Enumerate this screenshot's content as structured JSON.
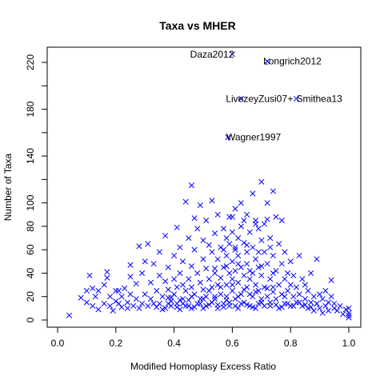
{
  "chart_data": {
    "type": "scatter",
    "title": "Taxa vs MHER",
    "xlabel": "Modified Homoplasy Excess Ratio",
    "ylabel": "Number of Taxa",
    "xlim": [
      0,
      1
    ],
    "ylim": [
      -5,
      235
    ],
    "x_ticks": [
      0.0,
      0.2,
      0.4,
      0.6,
      0.8,
      1.0
    ],
    "x_tick_labels": [
      "0.0",
      "0.2",
      "0.4",
      "0.6",
      "0.8",
      "1.0"
    ],
    "y_ticks": [
      0,
      20,
      40,
      60,
      80,
      100,
      120,
      140,
      160,
      180,
      200,
      220
    ],
    "y_tick_labels": [
      "0",
      "20",
      "40",
      "60",
      "80",
      "100",
      "",
      "140",
      "",
      "180",
      "",
      "220"
    ],
    "grid": false,
    "marker": "x",
    "marker_color": "#0000ff",
    "highlighted_points": [
      {
        "label": "Daza2012",
        "x": 0.6,
        "y": 227
      },
      {
        "label": "Longrich2012",
        "x": 0.72,
        "y": 221
      },
      {
        "label": "LivezeyZusi07",
        "x": 0.63,
        "y": 189
      },
      {
        "label": "Smithea13",
        "x": 0.82,
        "y": 189
      },
      {
        "label": "Wagner1997",
        "x": 0.585,
        "y": 156
      }
    ],
    "points": [
      [
        0.04,
        4
      ],
      [
        0.08,
        19
      ],
      [
        0.1,
        25
      ],
      [
        0.1,
        15
      ],
      [
        0.11,
        38
      ],
      [
        0.12,
        12
      ],
      [
        0.12,
        27
      ],
      [
        0.13,
        20
      ],
      [
        0.14,
        9
      ],
      [
        0.14,
        25
      ],
      [
        0.16,
        14
      ],
      [
        0.16,
        30
      ],
      [
        0.17,
        41
      ],
      [
        0.17,
        36
      ],
      [
        0.18,
        12
      ],
      [
        0.18,
        20
      ],
      [
        0.19,
        8
      ],
      [
        0.2,
        25
      ],
      [
        0.2,
        16
      ],
      [
        0.21,
        14
      ],
      [
        0.21,
        25
      ],
      [
        0.22,
        20
      ],
      [
        0.22,
        11
      ],
      [
        0.23,
        27
      ],
      [
        0.24,
        10
      ],
      [
        0.24,
        15
      ],
      [
        0.25,
        37
      ],
      [
        0.25,
        47
      ],
      [
        0.25,
        22
      ],
      [
        0.26,
        12
      ],
      [
        0.27,
        18
      ],
      [
        0.27,
        31
      ],
      [
        0.28,
        63
      ],
      [
        0.28,
        10
      ],
      [
        0.29,
        14
      ],
      [
        0.29,
        40
      ],
      [
        0.3,
        50
      ],
      [
        0.3,
        22
      ],
      [
        0.31,
        12
      ],
      [
        0.31,
        65
      ],
      [
        0.32,
        18
      ],
      [
        0.32,
        32
      ],
      [
        0.33,
        14
      ],
      [
        0.33,
        48
      ],
      [
        0.34,
        11
      ],
      [
        0.34,
        25
      ],
      [
        0.35,
        58
      ],
      [
        0.35,
        38
      ],
      [
        0.36,
        9
      ],
      [
        0.36,
        20
      ],
      [
        0.37,
        33
      ],
      [
        0.37,
        72
      ],
      [
        0.38,
        14
      ],
      [
        0.38,
        26
      ],
      [
        0.38,
        45
      ],
      [
        0.39,
        19
      ],
      [
        0.39,
        12
      ],
      [
        0.4,
        55
      ],
      [
        0.4,
        35
      ],
      [
        0.4,
        22
      ],
      [
        0.41,
        28
      ],
      [
        0.41,
        14
      ],
      [
        0.41,
        79
      ],
      [
        0.42,
        9
      ],
      [
        0.42,
        40
      ],
      [
        0.42,
        62
      ],
      [
        0.43,
        18
      ],
      [
        0.43,
        30
      ],
      [
        0.43,
        50
      ],
      [
        0.44,
        12
      ],
      [
        0.44,
        25
      ],
      [
        0.44,
        101
      ],
      [
        0.45,
        35
      ],
      [
        0.45,
        70
      ],
      [
        0.45,
        17
      ],
      [
        0.46,
        10
      ],
      [
        0.46,
        46
      ],
      [
        0.46,
        115
      ],
      [
        0.46,
        28
      ],
      [
        0.47,
        60
      ],
      [
        0.47,
        22
      ],
      [
        0.47,
        87
      ],
      [
        0.48,
        14
      ],
      [
        0.48,
        40
      ],
      [
        0.48,
        78
      ],
      [
        0.49,
        32
      ],
      [
        0.49,
        98
      ],
      [
        0.49,
        18
      ],
      [
        0.5,
        52
      ],
      [
        0.5,
        26
      ],
      [
        0.5,
        68
      ],
      [
        0.5,
        10
      ],
      [
        0.51,
        44
      ],
      [
        0.51,
        85
      ],
      [
        0.51,
        20
      ],
      [
        0.52,
        35
      ],
      [
        0.52,
        64
      ],
      [
        0.52,
        13
      ],
      [
        0.53,
        58
      ],
      [
        0.53,
        28
      ],
      [
        0.53,
        102
      ],
      [
        0.54,
        40
      ],
      [
        0.54,
        74
      ],
      [
        0.54,
        18
      ],
      [
        0.55,
        52
      ],
      [
        0.55,
        30
      ],
      [
        0.55,
        90
      ],
      [
        0.55,
        10
      ],
      [
        0.56,
        62
      ],
      [
        0.56,
        36
      ],
      [
        0.56,
        22
      ],
      [
        0.57,
        78
      ],
      [
        0.57,
        45
      ],
      [
        0.57,
        14
      ],
      [
        0.58,
        70
      ],
      [
        0.58,
        55
      ],
      [
        0.58,
        30
      ],
      [
        0.58,
        20
      ],
      [
        0.59,
        88
      ],
      [
        0.59,
        40
      ],
      [
        0.59,
        65
      ],
      [
        0.59,
        12
      ],
      [
        0.6,
        50
      ],
      [
        0.6,
        75
      ],
      [
        0.6,
        25
      ],
      [
        0.6,
        35
      ],
      [
        0.61,
        95
      ],
      [
        0.61,
        60
      ],
      [
        0.61,
        42
      ],
      [
        0.61,
        18
      ],
      [
        0.62,
        70
      ],
      [
        0.62,
        32
      ],
      [
        0.62,
        55
      ],
      [
        0.62,
        10
      ],
      [
        0.63,
        100
      ],
      [
        0.63,
        80
      ],
      [
        0.63,
        45
      ],
      [
        0.63,
        22
      ],
      [
        0.64,
        66
      ],
      [
        0.64,
        38
      ],
      [
        0.64,
        15
      ],
      [
        0.65,
        90
      ],
      [
        0.65,
        58
      ],
      [
        0.65,
        28
      ],
      [
        0.65,
        48
      ],
      [
        0.66,
        75
      ],
      [
        0.66,
        35
      ],
      [
        0.66,
        12
      ],
      [
        0.67,
        108
      ],
      [
        0.67,
        62
      ],
      [
        0.67,
        40
      ],
      [
        0.67,
        20
      ],
      [
        0.68,
        85
      ],
      [
        0.68,
        52
      ],
      [
        0.68,
        30
      ],
      [
        0.68,
        10
      ],
      [
        0.69,
        78
      ],
      [
        0.69,
        45
      ],
      [
        0.69,
        25
      ],
      [
        0.7,
        68
      ],
      [
        0.7,
        118
      ],
      [
        0.7,
        38
      ],
      [
        0.7,
        15
      ],
      [
        0.71,
        58
      ],
      [
        0.71,
        82
      ],
      [
        0.71,
        28
      ],
      [
        0.72,
        48
      ],
      [
        0.72,
        100
      ],
      [
        0.72,
        20
      ],
      [
        0.73,
        70
      ],
      [
        0.73,
        35
      ],
      [
        0.73,
        12
      ],
      [
        0.74,
        110
      ],
      [
        0.74,
        55
      ],
      [
        0.74,
        28
      ],
      [
        0.75,
        88
      ],
      [
        0.75,
        42
      ],
      [
        0.75,
        18
      ],
      [
        0.76,
        65
      ],
      [
        0.76,
        30
      ],
      [
        0.76,
        10
      ],
      [
        0.77,
        85
      ],
      [
        0.77,
        48
      ],
      [
        0.77,
        22
      ],
      [
        0.78,
        58
      ],
      [
        0.78,
        35
      ],
      [
        0.78,
        14
      ],
      [
        0.79,
        40
      ],
      [
        0.79,
        25
      ],
      [
        0.8,
        50
      ],
      [
        0.8,
        30
      ],
      [
        0.8,
        12
      ],
      [
        0.81,
        38
      ],
      [
        0.81,
        20
      ],
      [
        0.82,
        28
      ],
      [
        0.82,
        15
      ],
      [
        0.83,
        55
      ],
      [
        0.83,
        22
      ],
      [
        0.84,
        35
      ],
      [
        0.84,
        12
      ],
      [
        0.85,
        18
      ],
      [
        0.85,
        30
      ],
      [
        0.86,
        10
      ],
      [
        0.86,
        25
      ],
      [
        0.87,
        40
      ],
      [
        0.87,
        15
      ],
      [
        0.88,
        20
      ],
      [
        0.88,
        8
      ],
      [
        0.89,
        52
      ],
      [
        0.89,
        14
      ],
      [
        0.9,
        22
      ],
      [
        0.9,
        10
      ],
      [
        0.91,
        18
      ],
      [
        0.91,
        6
      ],
      [
        0.92,
        25
      ],
      [
        0.92,
        12
      ],
      [
        0.93,
        15
      ],
      [
        0.93,
        8
      ],
      [
        0.94,
        20
      ],
      [
        0.94,
        34
      ],
      [
        0.95,
        10
      ],
      [
        0.95,
        14
      ],
      [
        0.96,
        8
      ],
      [
        0.97,
        12
      ],
      [
        0.98,
        5
      ],
      [
        0.99,
        9
      ],
      [
        1.0,
        10
      ],
      [
        1.0,
        6
      ],
      [
        1.0,
        4
      ],
      [
        1.0,
        2
      ],
      [
        0.35,
        14
      ],
      [
        0.37,
        10
      ],
      [
        0.39,
        16
      ],
      [
        0.41,
        11
      ],
      [
        0.43,
        14
      ],
      [
        0.45,
        12
      ],
      [
        0.47,
        11
      ],
      [
        0.49,
        14
      ],
      [
        0.51,
        12
      ],
      [
        0.53,
        15
      ],
      [
        0.55,
        13
      ],
      [
        0.57,
        11
      ],
      [
        0.59,
        15
      ],
      [
        0.61,
        12
      ],
      [
        0.63,
        14
      ],
      [
        0.65,
        13
      ],
      [
        0.67,
        11
      ],
      [
        0.69,
        14
      ],
      [
        0.71,
        12
      ],
      [
        0.73,
        15
      ],
      [
        0.75,
        13
      ],
      [
        0.77,
        11
      ],
      [
        0.79,
        14
      ],
      [
        0.81,
        12
      ],
      [
        0.83,
        15
      ],
      [
        0.85,
        13
      ],
      [
        0.87,
        11
      ],
      [
        0.89,
        14
      ],
      [
        0.52,
        25
      ],
      [
        0.56,
        28
      ],
      [
        0.6,
        30
      ],
      [
        0.64,
        26
      ],
      [
        0.68,
        24
      ],
      [
        0.72,
        27
      ],
      [
        0.54,
        44
      ],
      [
        0.58,
        46
      ],
      [
        0.62,
        48
      ],
      [
        0.66,
        42
      ],
      [
        0.7,
        46
      ],
      [
        0.74,
        40
      ],
      [
        0.57,
        60
      ],
      [
        0.61,
        62
      ],
      [
        0.65,
        64
      ],
      [
        0.69,
        58
      ],
      [
        0.73,
        62
      ],
      [
        0.6,
        88
      ],
      [
        0.64,
        85
      ],
      [
        0.68,
        82
      ],
      [
        0.72,
        86
      ],
      [
        0.62,
        20
      ],
      [
        0.66,
        22
      ],
      [
        0.7,
        18
      ],
      [
        0.74,
        24
      ],
      [
        0.78,
        20
      ],
      [
        0.5,
        18
      ],
      [
        0.54,
        20
      ],
      [
        0.58,
        17
      ],
      [
        0.46,
        20
      ],
      [
        0.42,
        17
      ],
      [
        0.38,
        19
      ]
    ]
  }
}
